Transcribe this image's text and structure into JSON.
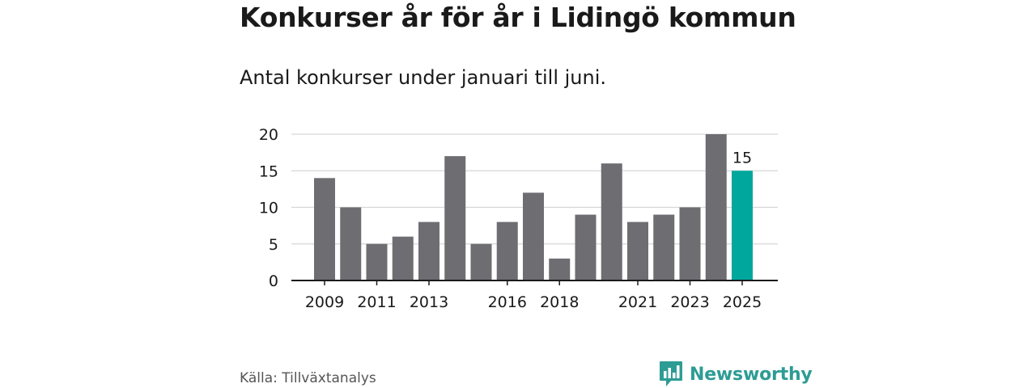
{
  "header": {
    "title": "Konkurser år för år i Lidingö kommun",
    "subtitle": "Antal konkurser under januari till juni."
  },
  "footer": {
    "source": "Källa: Tillväxtanalys",
    "brand": "Newsworthy",
    "brand_color": "#2d9c94"
  },
  "chart_data": {
    "type": "bar",
    "categories": [
      "2009",
      "2010",
      "2011",
      "2012",
      "2013",
      "2014",
      "2015",
      "2016",
      "2017",
      "2018",
      "2019",
      "2020",
      "2021",
      "2022",
      "2023",
      "2024",
      "2025"
    ],
    "values": [
      14,
      10,
      5,
      6,
      8,
      17,
      5,
      8,
      12,
      3,
      9,
      16,
      8,
      9,
      10,
      20,
      15
    ],
    "x_tick_labels": [
      "2009",
      "2011",
      "2013",
      "2016",
      "2018",
      "2021",
      "2023",
      "2025"
    ],
    "y_ticks": [
      0,
      5,
      10,
      15,
      20
    ],
    "ylim": [
      0,
      20
    ],
    "grid": true,
    "bar_color": "#6e6d72",
    "highlight_color": "#00a79d",
    "highlight_category": "2025",
    "data_labels": [
      {
        "category": "2025",
        "text": "15"
      }
    ]
  }
}
